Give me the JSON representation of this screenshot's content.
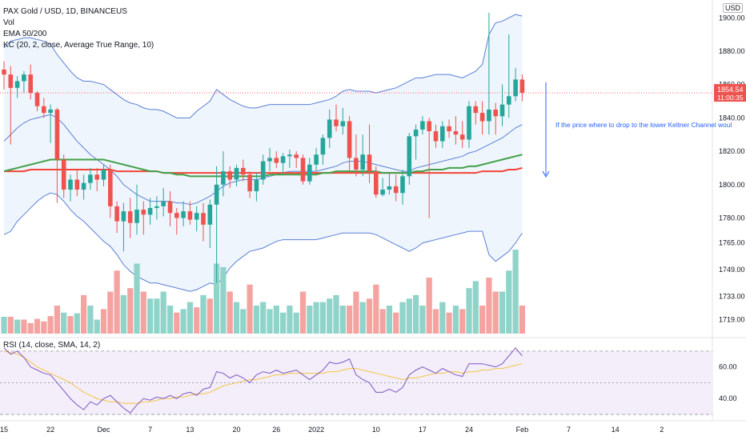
{
  "legend": {
    "symbol_line": "PAX Gold / USD, 1D, BINANCEUS",
    "vol": "Vol",
    "ema": "EMA 50/200",
    "kc": "KC (20, 2, close, Average True Range, 10)"
  },
  "currency_badge": "USD",
  "price_badge": {
    "price": "1854.54",
    "countdown": "11:00:35"
  },
  "annotation": "If the price where to drop to the lower Keltner Channel woul",
  "rsi_title": "RSI (14, close, SMA, 14, 2)",
  "colors": {
    "up": "#26a69a",
    "down": "#ef5350",
    "ema50": "#43a047",
    "ema200": "#f44336",
    "kc": "#5b7fd6",
    "kc_fill": "#eef5fc",
    "rsi": "#7e57c2",
    "rsi_ma": "#f5c542",
    "rsi_fill": "#f3eefa",
    "annotation": "#2962ff"
  },
  "chart_data": {
    "type": "candlestick",
    "price_axis": {
      "ticks": [
        "1900.00",
        "1880.00",
        "1860.00",
        "1840.00",
        "1820.00",
        "1800.00",
        "1780.00",
        "1765.00",
        "1749.00",
        "1733.00",
        "1719.00"
      ],
      "ylim": [
        1715,
        1903
      ]
    },
    "x_axis": {
      "ticks": [
        "15",
        "22",
        "Dec",
        "7",
        "13",
        "20",
        "26",
        "2022",
        "10",
        "17",
        "24",
        "Feb",
        "7",
        "14",
        "2"
      ],
      "tick_bar_index": [
        0,
        7,
        15,
        22,
        28,
        35,
        41,
        47,
        56,
        63,
        70,
        78,
        85,
        92,
        99
      ]
    },
    "candles": [
      [
        1869,
        1874,
        1857,
        1866
      ],
      [
        1866,
        1871,
        1824,
        1858
      ],
      [
        1858,
        1865,
        1852,
        1862
      ],
      [
        1862,
        1868,
        1855,
        1866
      ],
      [
        1866,
        1872,
        1851,
        1855
      ],
      [
        1855,
        1856,
        1844,
        1847
      ],
      [
        1847,
        1852,
        1840,
        1843
      ],
      [
        1843,
        1848,
        1825,
        1845
      ],
      [
        1845,
        1846,
        1789,
        1815
      ],
      [
        1815,
        1818,
        1792,
        1797
      ],
      [
        1797,
        1806,
        1790,
        1803
      ],
      [
        1803,
        1809,
        1793,
        1797
      ],
      [
        1797,
        1806,
        1791,
        1801
      ],
      [
        1801,
        1810,
        1797,
        1806
      ],
      [
        1806,
        1810,
        1796,
        1803
      ],
      [
        1803,
        1812,
        1799,
        1809
      ],
      [
        1809,
        1812,
        1780,
        1787
      ],
      [
        1787,
        1790,
        1771,
        1778
      ],
      [
        1778,
        1789,
        1760,
        1784
      ],
      [
        1784,
        1792,
        1768,
        1777
      ],
      [
        1777,
        1800,
        1770,
        1785
      ],
      [
        1785,
        1790,
        1770,
        1782
      ],
      [
        1782,
        1792,
        1776,
        1786
      ],
      [
        1786,
        1793,
        1779,
        1787
      ],
      [
        1787,
        1798,
        1781,
        1790
      ],
      [
        1790,
        1796,
        1775,
        1783
      ],
      [
        1783,
        1786,
        1770,
        1780
      ],
      [
        1780,
        1790,
        1775,
        1784
      ],
      [
        1784,
        1790,
        1776,
        1779
      ],
      [
        1779,
        1787,
        1772,
        1783
      ],
      [
        1783,
        1789,
        1766,
        1776
      ],
      [
        1776,
        1791,
        1762,
        1788
      ],
      [
        1788,
        1811,
        1741,
        1800
      ],
      [
        1800,
        1820,
        1793,
        1808
      ],
      [
        1808,
        1811,
        1798,
        1803
      ],
      [
        1803,
        1812,
        1799,
        1810
      ],
      [
        1810,
        1815,
        1802,
        1806
      ],
      [
        1806,
        1808,
        1792,
        1796
      ],
      [
        1796,
        1807,
        1790,
        1803
      ],
      [
        1803,
        1818,
        1800,
        1814
      ],
      [
        1814,
        1822,
        1808,
        1816
      ],
      [
        1816,
        1820,
        1810,
        1813
      ],
      [
        1813,
        1819,
        1806,
        1817
      ],
      [
        1817,
        1821,
        1810,
        1818
      ],
      [
        1818,
        1820,
        1810,
        1816
      ],
      [
        1816,
        1818,
        1800,
        1802
      ],
      [
        1802,
        1816,
        1800,
        1812
      ],
      [
        1812,
        1822,
        1808,
        1818
      ],
      [
        1818,
        1830,
        1812,
        1828
      ],
      [
        1828,
        1845,
        1822,
        1839
      ],
      [
        1839,
        1848,
        1832,
        1835
      ],
      [
        1835,
        1846,
        1830,
        1838
      ],
      [
        1838,
        1841,
        1808,
        1816
      ],
      [
        1816,
        1830,
        1805,
        1809
      ],
      [
        1809,
        1830,
        1805,
        1818
      ],
      [
        1818,
        1836,
        1801,
        1808
      ],
      [
        1808,
        1811,
        1792,
        1794
      ],
      [
        1794,
        1804,
        1793,
        1797
      ],
      [
        1797,
        1807,
        1794,
        1799
      ],
      [
        1799,
        1806,
        1790,
        1795
      ],
      [
        1795,
        1809,
        1788,
        1805
      ],
      [
        1805,
        1831,
        1800,
        1829
      ],
      [
        1829,
        1836,
        1815,
        1833
      ],
      [
        1833,
        1841,
        1830,
        1838
      ],
      [
        1838,
        1840,
        1780,
        1832
      ],
      [
        1832,
        1836,
        1822,
        1826
      ],
      [
        1826,
        1838,
        1822,
        1835
      ],
      [
        1835,
        1839,
        1828,
        1832
      ],
      [
        1832,
        1841,
        1824,
        1830
      ],
      [
        1830,
        1838,
        1822,
        1827
      ],
      [
        1827,
        1850,
        1822,
        1847
      ],
      [
        1847,
        1850,
        1836,
        1843
      ],
      [
        1843,
        1850,
        1830,
        1838
      ],
      [
        1838,
        1903,
        1830,
        1845
      ],
      [
        1845,
        1849,
        1830,
        1841
      ],
      [
        1841,
        1860,
        1835,
        1848
      ],
      [
        1848,
        1890,
        1840,
        1853
      ],
      [
        1853,
        1870,
        1850,
        1863
      ],
      [
        1863,
        1866,
        1850,
        1855
      ]
    ],
    "volume": [
      [
        0.48,
        "up"
      ],
      [
        0.48,
        "down"
      ],
      [
        0.4,
        "up"
      ],
      [
        0.4,
        "down"
      ],
      [
        0.3,
        "down"
      ],
      [
        0.42,
        "down"
      ],
      [
        0.35,
        "down"
      ],
      [
        0.5,
        "down"
      ],
      [
        0.8,
        "down"
      ],
      [
        0.6,
        "up"
      ],
      [
        0.5,
        "down"
      ],
      [
        0.58,
        "up"
      ],
      [
        1.1,
        "down"
      ],
      [
        0.8,
        "up"
      ],
      [
        0.4,
        "up"
      ],
      [
        0.7,
        "down"
      ],
      [
        1.2,
        "down"
      ],
      [
        1.8,
        "down"
      ],
      [
        1.1,
        "up"
      ],
      [
        1.3,
        "down"
      ],
      [
        2.0,
        "up"
      ],
      [
        1.2,
        "down"
      ],
      [
        1.0,
        "up"
      ],
      [
        1.0,
        "up"
      ],
      [
        1.2,
        "up"
      ],
      [
        0.8,
        "up"
      ],
      [
        0.6,
        "down"
      ],
      [
        0.7,
        "up"
      ],
      [
        0.9,
        "up"
      ],
      [
        0.75,
        "down"
      ],
      [
        1.1,
        "up"
      ],
      [
        1.0,
        "down"
      ],
      [
        2.0,
        "up"
      ],
      [
        1.9,
        "up"
      ],
      [
        1.2,
        "down"
      ],
      [
        0.9,
        "up"
      ],
      [
        0.7,
        "up"
      ],
      [
        1.4,
        "down"
      ],
      [
        0.8,
        "up"
      ],
      [
        0.9,
        "up"
      ],
      [
        0.7,
        "up"
      ],
      [
        0.8,
        "up"
      ],
      [
        0.6,
        "up"
      ],
      [
        0.8,
        "up"
      ],
      [
        0.6,
        "up"
      ],
      [
        1.2,
        "down"
      ],
      [
        0.8,
        "up"
      ],
      [
        0.9,
        "up"
      ],
      [
        0.9,
        "up"
      ],
      [
        1.0,
        "up"
      ],
      [
        1.1,
        "up"
      ],
      [
        0.8,
        "up"
      ],
      [
        0.8,
        "down"
      ],
      [
        1.2,
        "down"
      ],
      [
        0.9,
        "up"
      ],
      [
        1.0,
        "down"
      ],
      [
        1.4,
        "down"
      ],
      [
        0.7,
        "down"
      ],
      [
        0.8,
        "up"
      ],
      [
        0.6,
        "down"
      ],
      [
        0.9,
        "up"
      ],
      [
        1.0,
        "up"
      ],
      [
        1.1,
        "up"
      ],
      [
        0.8,
        "up"
      ],
      [
        1.6,
        "down"
      ],
      [
        0.7,
        "down"
      ],
      [
        0.9,
        "up"
      ],
      [
        0.6,
        "down"
      ],
      [
        0.8,
        "up"
      ],
      [
        0.7,
        "down"
      ],
      [
        1.3,
        "up"
      ],
      [
        1.5,
        "up"
      ],
      [
        0.8,
        "down"
      ],
      [
        1.6,
        "down"
      ],
      [
        1.2,
        "down"
      ],
      [
        1.2,
        "up"
      ],
      [
        1.8,
        "up"
      ],
      [
        2.4,
        "up"
      ],
      [
        0.8,
        "down"
      ]
    ],
    "volume_max": 2.4,
    "rsi": {
      "ticks": [
        "60.00",
        "40.00"
      ],
      "ylim": [
        28,
        77
      ],
      "levels": [
        70,
        50,
        30
      ],
      "values": [
        72,
        68,
        70,
        66,
        60,
        58,
        56,
        55,
        50,
        45,
        40,
        36,
        33,
        38,
        36,
        40,
        42,
        38,
        34,
        31,
        36,
        40,
        39,
        41,
        40,
        42,
        40,
        43,
        44,
        42,
        46,
        47,
        57,
        56,
        53,
        55,
        53,
        50,
        55,
        57,
        56,
        58,
        56,
        57,
        58,
        55,
        52,
        55,
        58,
        63,
        62,
        63,
        65,
        55,
        52,
        50,
        44,
        44,
        46,
        44,
        47,
        55,
        58,
        60,
        58,
        56,
        59,
        57,
        55,
        54,
        62,
        62,
        62,
        61,
        60,
        62,
        67,
        72,
        67
      ],
      "ma": [
        70,
        69,
        68,
        66,
        63,
        60,
        58,
        56,
        54,
        52,
        50,
        47,
        44,
        42,
        40,
        39,
        38,
        38,
        37,
        37,
        37,
        38,
        38,
        39,
        40,
        40,
        41,
        41,
        42,
        43,
        43,
        44,
        46,
        48,
        49,
        50,
        51,
        52,
        52,
        53,
        54,
        55,
        55,
        56,
        56,
        56,
        56,
        56,
        56,
        57,
        57,
        58,
        59,
        59,
        58,
        57,
        56,
        55,
        54,
        53,
        52,
        53,
        53,
        54,
        55,
        56,
        56,
        57,
        57,
        56,
        57,
        57,
        58,
        58,
        59,
        59,
        60,
        61,
        62
      ]
    },
    "kc": {
      "upper": [
        1882,
        1886,
        1887,
        1888,
        1888,
        1887,
        1886,
        1884,
        1878,
        1873,
        1868,
        1864,
        1862,
        1862,
        1861,
        1860,
        1857,
        1854,
        1851,
        1849,
        1848,
        1846,
        1845,
        1845,
        1844,
        1842,
        1840,
        1840,
        1840,
        1844,
        1847,
        1850,
        1857,
        1854,
        1851,
        1849,
        1847,
        1846,
        1846,
        1847,
        1848,
        1848,
        1848,
        1848,
        1848,
        1848,
        1848,
        1849,
        1850,
        1851,
        1853,
        1856,
        1857,
        1856,
        1856,
        1856,
        1855,
        1856,
        1857,
        1858,
        1860,
        1862,
        1864,
        1864,
        1865,
        1866,
        1866,
        1866,
        1865,
        1864,
        1866,
        1868,
        1872,
        1890,
        1897,
        1898,
        1900,
        1902,
        1901
      ],
      "middle": [
        1826,
        1830,
        1834,
        1837,
        1839,
        1840,
        1841,
        1842,
        1840,
        1836,
        1831,
        1826,
        1822,
        1818,
        1815,
        1812,
        1809,
        1805,
        1800,
        1797,
        1794,
        1792,
        1790,
        1790,
        1790,
        1790,
        1789,
        1789,
        1788,
        1789,
        1791,
        1793,
        1796,
        1799,
        1801,
        1802,
        1803,
        1803,
        1803,
        1804,
        1805,
        1806,
        1807,
        1808,
        1808,
        1808,
        1808,
        1808,
        1809,
        1810,
        1811,
        1813,
        1814,
        1814,
        1814,
        1813,
        1812,
        1811,
        1810,
        1809,
        1808,
        1808,
        1810,
        1811,
        1812,
        1813,
        1814,
        1815,
        1816,
        1817,
        1819,
        1820,
        1822,
        1824,
        1826,
        1828,
        1831,
        1834,
        1836
      ],
      "lower": [
        1770,
        1772,
        1778,
        1782,
        1786,
        1790,
        1793,
        1795,
        1794,
        1790,
        1785,
        1781,
        1778,
        1774,
        1770,
        1766,
        1763,
        1758,
        1752,
        1748,
        1745,
        1743,
        1741,
        1741,
        1740,
        1739,
        1738,
        1737,
        1736,
        1737,
        1739,
        1741,
        1740,
        1744,
        1750,
        1754,
        1757,
        1760,
        1761,
        1762,
        1764,
        1766,
        1767,
        1767,
        1767,
        1767,
        1767,
        1767,
        1768,
        1769,
        1770,
        1771,
        1771,
        1771,
        1771,
        1771,
        1770,
        1768,
        1766,
        1764,
        1762,
        1760,
        1762,
        1765,
        1766,
        1767,
        1768,
        1769,
        1770,
        1771,
        1772,
        1772,
        1772,
        1758,
        1754,
        1757,
        1760,
        1765,
        1771
      ]
    },
    "ema50": [
      1808,
      1809,
      1810,
      1811,
      1812,
      1813,
      1814,
      1815,
      1815,
      1815,
      1815,
      1815,
      1815,
      1815,
      1815,
      1815,
      1814,
      1813,
      1812,
      1811,
      1810,
      1809,
      1808,
      1808,
      1807,
      1807,
      1806,
      1806,
      1805,
      1805,
      1805,
      1805,
      1805,
      1805,
      1805,
      1805,
      1805,
      1805,
      1805,
      1805,
      1806,
      1806,
      1806,
      1806,
      1806,
      1806,
      1806,
      1806,
      1807,
      1807,
      1808,
      1808,
      1808,
      1808,
      1808,
      1808,
      1808,
      1807,
      1807,
      1807,
      1807,
      1807,
      1808,
      1808,
      1809,
      1809,
      1809,
      1810,
      1810,
      1810,
      1811,
      1811,
      1812,
      1813,
      1814,
      1815,
      1816,
      1817,
      1818
    ],
    "ema200": [
      1808,
      1808,
      1808,
      1808,
      1809,
      1809,
      1809,
      1809,
      1809,
      1809,
      1809,
      1809,
      1809,
      1809,
      1809,
      1809,
      1809,
      1808,
      1808,
      1808,
      1808,
      1808,
      1808,
      1808,
      1807,
      1807,
      1807,
      1807,
      1807,
      1807,
      1807,
      1807,
      1807,
      1807,
      1807,
      1807,
      1807,
      1807,
      1807,
      1807,
      1807,
      1807,
      1807,
      1807,
      1807,
      1807,
      1807,
      1807,
      1807,
      1807,
      1807,
      1807,
      1807,
      1807,
      1807,
      1807,
      1807,
      1807,
      1807,
      1807,
      1807,
      1807,
      1807,
      1807,
      1807,
      1807,
      1807,
      1807,
      1807,
      1807,
      1807,
      1807,
      1808,
      1808,
      1808,
      1808,
      1809,
      1809,
      1810
    ],
    "hline_price": 1855,
    "grid": true
  }
}
